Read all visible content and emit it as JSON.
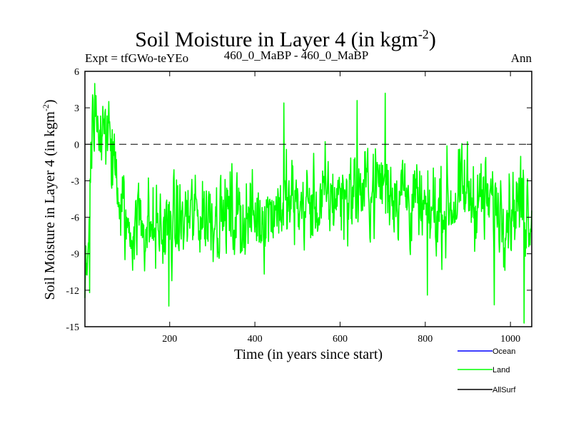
{
  "chart_data": {
    "type": "line",
    "title_main": "Soil Moisture in Layer 4 (in kgm",
    "title_sup": "-2",
    "title_close": ")",
    "experiment": "Expt = tfGWo-teYEo",
    "comparison": "460_0_MaBP - 460_0_MaBP",
    "period": "Ann",
    "xlabel": "Time (in years since start)",
    "ylabel_main": "Soil Moisture in Layer 4 (in kgm",
    "ylabel_sup": "-2",
    "ylabel_close": ")",
    "xlim": [
      1,
      1050
    ],
    "ylim": [
      -15,
      6
    ],
    "x_ticks": [
      200,
      400,
      600,
      800,
      1000
    ],
    "x_tick_labels": [
      "200",
      "400",
      "600",
      "800",
      "1000"
    ],
    "y_ticks": [
      6,
      3,
      0,
      -3,
      -6,
      -9,
      -12,
      -15
    ],
    "y_tick_labels": [
      "6",
      "3",
      "0",
      "-3",
      "-6",
      "-9",
      "-12",
      "-15"
    ],
    "zero_line": 0,
    "series": [
      {
        "name": "Land",
        "color": "#00ff00",
        "generator": "approximate annual noise series (1050 years); anchor values at given years",
        "anchors": [
          [
            1,
            -11
          ],
          [
            8,
            -8
          ],
          [
            13,
            -3
          ],
          [
            18,
            2.5
          ],
          [
            24,
            3
          ],
          [
            30,
            1.5
          ],
          [
            40,
            0
          ],
          [
            55,
            1
          ],
          [
            70,
            -2
          ],
          [
            85,
            -5
          ],
          [
            100,
            -7
          ],
          [
            130,
            -6
          ],
          [
            160,
            -7
          ],
          [
            200,
            -7
          ],
          [
            250,
            -6
          ],
          [
            300,
            -5.5
          ],
          [
            350,
            -6
          ],
          [
            400,
            -6
          ],
          [
            450,
            -5
          ],
          [
            500,
            -5
          ],
          [
            550,
            -5
          ],
          [
            600,
            -4
          ],
          [
            650,
            -4
          ],
          [
            700,
            -3
          ],
          [
            750,
            -4
          ],
          [
            800,
            -6
          ],
          [
            850,
            -5
          ],
          [
            900,
            -4
          ],
          [
            950,
            -5
          ],
          [
            1000,
            -5
          ],
          [
            1050,
            -5
          ]
        ],
        "noise_amplitude": 2.2,
        "events": [
          [
            12,
            -12.2
          ],
          [
            24,
            5.0
          ],
          [
            198,
            -13.3
          ],
          [
            468,
            3.4
          ],
          [
            640,
            3.6
          ],
          [
            706,
            4.2
          ],
          [
            805,
            -12.4
          ],
          [
            962,
            -13.2
          ],
          [
            1032,
            -14.7
          ]
        ]
      },
      {
        "name": "Ocean",
        "color": "#0000ff",
        "values": []
      },
      {
        "name": "AllSurf",
        "color": "#000000",
        "values": []
      }
    ],
    "legend": [
      {
        "label": "Ocean",
        "color": "#0000ff"
      },
      {
        "label": "Land",
        "color": "#00ff00"
      },
      {
        "label": "AllSurf",
        "color": "#000000"
      }
    ],
    "legend_position": "bottom-right"
  }
}
